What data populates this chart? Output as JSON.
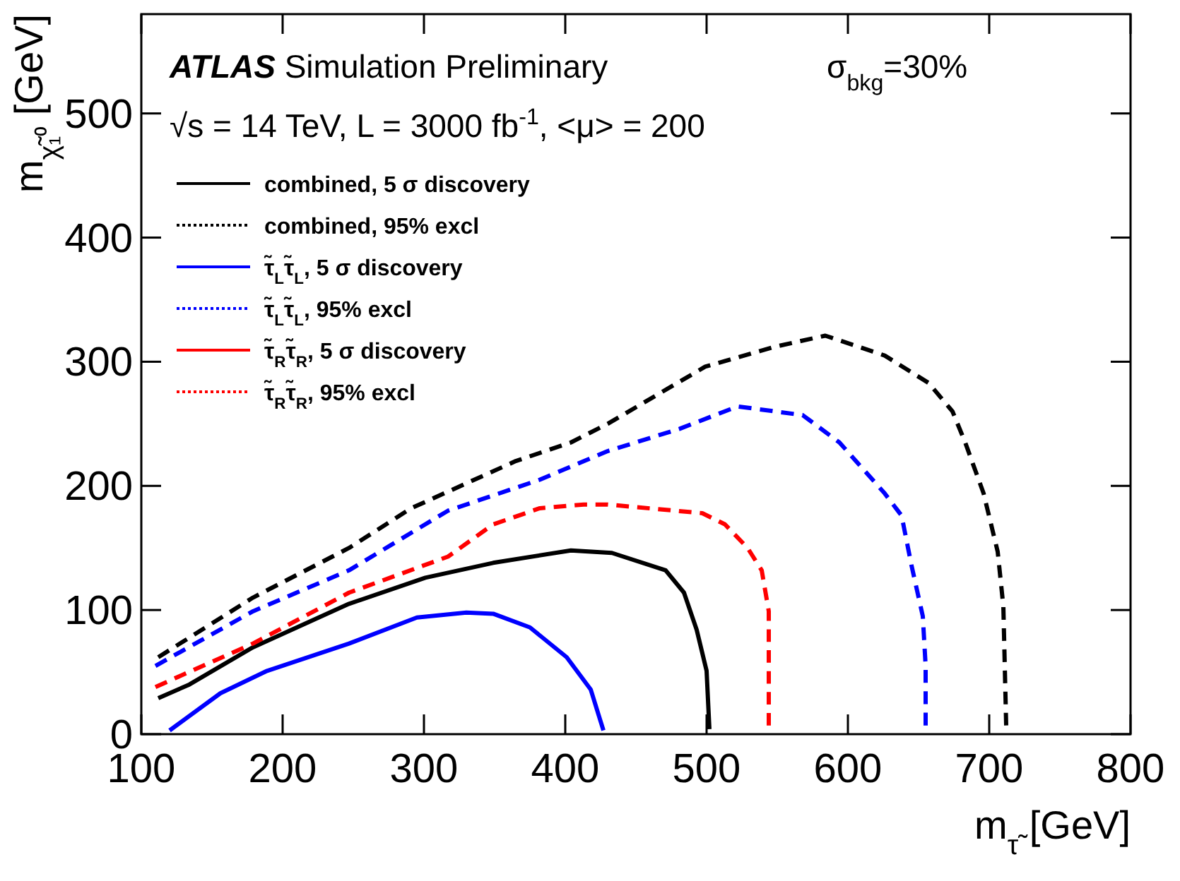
{
  "chart_data": {
    "type": "line",
    "xlabel": "m$_{τ̃}$ [GeV]",
    "ylabel": "m$_{χ̃₁⁰}$ [GeV]",
    "xlim": [
      100,
      800
    ],
    "xticks": [
      100,
      200,
      300,
      400,
      500,
      600,
      700,
      800
    ],
    "ylim": [
      0,
      580
    ],
    "yticks": [
      0,
      100,
      200,
      300,
      400,
      500
    ],
    "grid": false,
    "legend": "top left",
    "annotations": [
      "ATLAS Simulation Preliminary",
      "√s = 14 TeV, L = 3000 fb$^{-1}$, <μ> = 200",
      "σ$_{bkg}$=30%"
    ],
    "series": [
      {
        "name": "combined, 5 σ discovery",
        "color": "#000000",
        "line_style": "solid",
        "x": [
          112,
          134,
          179,
          247,
          301,
          349,
          404,
          433,
          471,
          484,
          493,
          500,
          502
        ],
        "values": [
          29,
          40,
          70,
          105,
          126,
          138,
          148,
          146,
          132,
          114,
          84,
          51,
          4
        ]
      },
      {
        "name": "combined, 95% excl",
        "color": "#000000",
        "line_style": "dashed",
        "x": [
          112,
          179,
          247,
          291,
          365,
          404,
          430,
          499,
          548,
          584,
          626,
          657,
          674,
          683,
          696,
          706,
          710,
          712
        ],
        "values": [
          62,
          110,
          150,
          182,
          220,
          235,
          250,
          296,
          312,
          321,
          305,
          283,
          260,
          235,
          194,
          147,
          103,
          7
        ]
      },
      {
        "name": "τ̃$_{L}$τ̃$_{L}$, 5 σ discovery",
        "color": "#0000ff",
        "line_style": "solid",
        "x": [
          120,
          156,
          189,
          247,
          295,
          330,
          349,
          375,
          401,
          418,
          427
        ],
        "values": [
          3,
          33,
          51,
          73,
          94,
          98,
          97,
          86,
          62,
          36,
          3
        ]
      },
      {
        "name": "τ̃$_{L}$τ̃$_{L}$, 95% excl",
        "color": "#0000ff",
        "line_style": "dashed",
        "x": [
          110,
          179,
          247,
          317,
          382,
          430,
          481,
          522,
          568,
          594,
          626,
          638,
          645,
          653,
          655,
          655
        ],
        "values": [
          55,
          99,
          132,
          180,
          205,
          228,
          246,
          264,
          257,
          235,
          194,
          176,
          136,
          95,
          55,
          7
        ]
      },
      {
        "name": "τ̃$_{R}$τ̃$_{R}$, 5 σ discovery",
        "color": "#ff0000",
        "line_style": "solid"
      },
      {
        "name": "τ̃$_{R}$τ̃$_{R}$, 95% excl",
        "color": "#ff0000",
        "line_style": "dashed",
        "x": [
          110,
          179,
          247,
          317,
          349,
          382,
          413,
          430,
          497,
          513,
          529,
          539,
          544,
          544
        ],
        "values": [
          38,
          73,
          114,
          143,
          169,
          182,
          185,
          185,
          178,
          169,
          150,
          132,
          99,
          7
        ]
      }
    ]
  }
}
